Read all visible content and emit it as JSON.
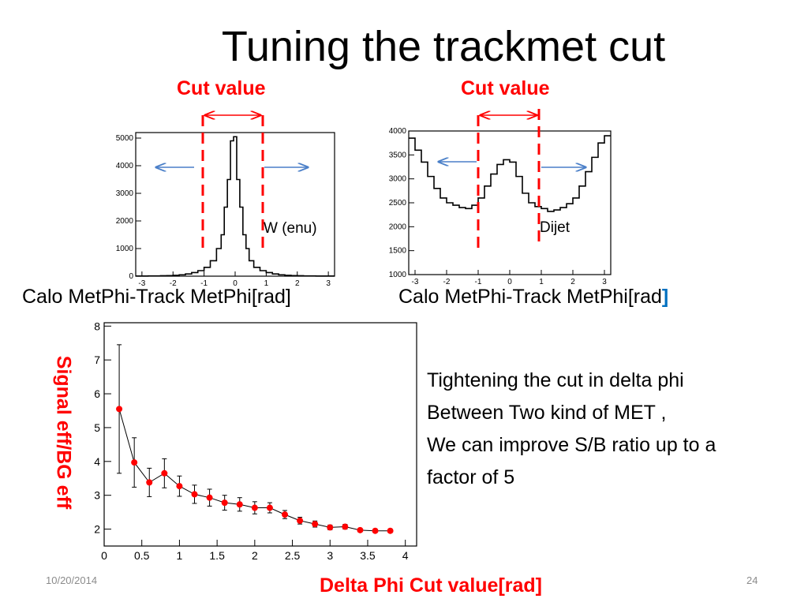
{
  "slide": {
    "title": "Tuning the trackmet cut",
    "cut_label_left": "Cut value",
    "cut_label_right": "Cut value",
    "xcap_left": "Calo MetPhi-Track MetPhi[rad]",
    "xcap_right_main": "Calo MetPhi-Track MetPhi[rad",
    "xcap_right_bracket": "]",
    "bottom_ylabel": "Signal eff/BG eff",
    "bottom_xlabel": "Delta Phi Cut value[rad]",
    "text_lines": [
      "Tightening the cut in delta phi",
      "Between Two kind of MET ,",
      "We can improve S/B ratio up to a",
      "factor  of 5"
    ],
    "footer_date": "10/20/2014",
    "footer_page": "24"
  },
  "colors": {
    "cut_line": "#ff0000",
    "arrow": "#4a7fc8",
    "points": "#ff0000",
    "label_red": "#ff0000"
  },
  "chart_data": [
    {
      "type": "histogram",
      "annotation": "W (enu)",
      "xlim": [
        -3.2,
        3.2
      ],
      "ylim": [
        0,
        5200
      ],
      "xticks": [
        -3,
        -2,
        -1,
        0,
        1,
        2,
        3
      ],
      "yticks": [
        0,
        1000,
        2000,
        3000,
        4000,
        5000
      ],
      "cut_lines": [
        -1,
        1
      ],
      "x": [
        -3.1,
        -2.9,
        -2.7,
        -2.5,
        -2.3,
        -2.1,
        -1.9,
        -1.7,
        -1.5,
        -1.3,
        -1.1,
        -0.9,
        -0.7,
        -0.5,
        -0.4,
        -0.3,
        -0.2,
        -0.1,
        0.0,
        0.1,
        0.2,
        0.3,
        0.4,
        0.5,
        0.7,
        0.9,
        1.1,
        1.3,
        1.5,
        1.7,
        1.9,
        2.1,
        2.3,
        2.5,
        2.7,
        2.9,
        3.1
      ],
      "values": [
        5,
        5,
        8,
        10,
        15,
        20,
        30,
        50,
        80,
        130,
        200,
        320,
        560,
        1000,
        1500,
        2500,
        3500,
        4900,
        5050,
        3500,
        2500,
        1500,
        1000,
        560,
        320,
        200,
        130,
        80,
        50,
        30,
        20,
        15,
        10,
        8,
        5,
        5,
        5
      ]
    },
    {
      "type": "histogram",
      "annotation": "Dijet",
      "xlim": [
        -3.2,
        3.2
      ],
      "ylim": [
        1000,
        4000
      ],
      "xticks": [
        -3,
        -2,
        -1,
        0,
        1,
        2,
        3
      ],
      "yticks": [
        1000,
        1500,
        2000,
        2500,
        3000,
        3500,
        4000
      ],
      "cut_lines": [
        -1,
        1
      ],
      "x": [
        -3.1,
        -2.9,
        -2.7,
        -2.5,
        -2.3,
        -2.1,
        -1.9,
        -1.7,
        -1.5,
        -1.3,
        -1.1,
        -0.9,
        -0.7,
        -0.5,
        -0.3,
        -0.1,
        0.1,
        0.3,
        0.5,
        0.7,
        0.9,
        1.1,
        1.3,
        1.5,
        1.7,
        1.9,
        2.1,
        2.3,
        2.5,
        2.7,
        2.9,
        3.1
      ],
      "values": [
        3850,
        3600,
        3350,
        3050,
        2800,
        2600,
        2500,
        2450,
        2400,
        2380,
        2450,
        2600,
        2850,
        3100,
        3300,
        3400,
        3350,
        3050,
        2700,
        2500,
        2420,
        2380,
        2320,
        2350,
        2400,
        2480,
        2600,
        2850,
        3150,
        3450,
        3750,
        3900
      ]
    },
    {
      "type": "scatter",
      "xlim": [
        0,
        4.15
      ],
      "ylim": [
        1.5,
        8.1
      ],
      "xticks": [
        0,
        0.5,
        1,
        1.5,
        2,
        2.5,
        3,
        3.5,
        4
      ],
      "yticks": [
        2,
        3,
        4,
        5,
        6,
        7,
        8
      ],
      "x": [
        0.2,
        0.4,
        0.6,
        0.8,
        1.0,
        1.2,
        1.4,
        1.6,
        1.8,
        2.0,
        2.2,
        2.4,
        2.6,
        2.8,
        3.0,
        3.2,
        3.4,
        3.6,
        3.8
      ],
      "y": [
        5.55,
        3.97,
        3.38,
        3.65,
        3.27,
        3.03,
        2.93,
        2.78,
        2.73,
        2.63,
        2.63,
        2.43,
        2.25,
        2.15,
        2.05,
        2.07,
        1.97,
        1.95,
        1.95
      ],
      "errors": [
        1.9,
        0.73,
        0.42,
        0.43,
        0.3,
        0.27,
        0.25,
        0.22,
        0.2,
        0.18,
        0.15,
        0.12,
        0.1,
        0.09,
        0.07,
        0.07,
        0.05,
        0.05,
        0.05
      ]
    }
  ]
}
